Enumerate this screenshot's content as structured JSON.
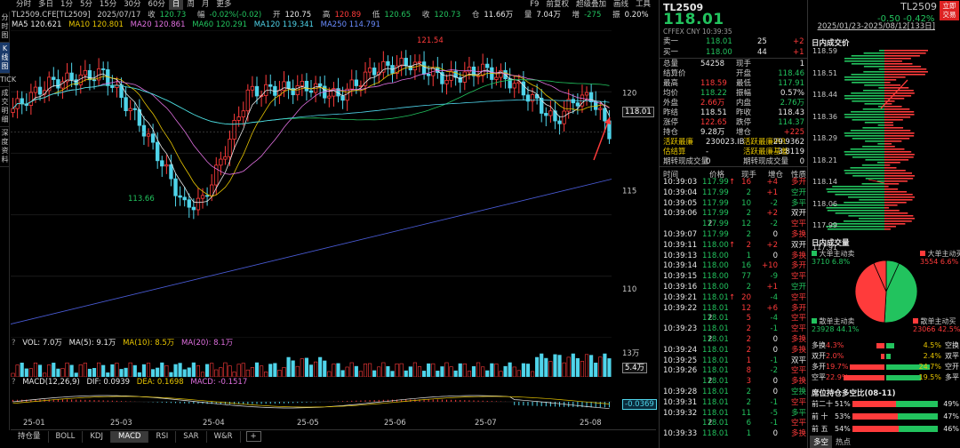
{
  "topbar": {
    "timeframes": [
      "分时",
      "多日",
      "1分",
      "5分",
      "15分",
      "30分",
      "60分",
      "日",
      "周",
      "月",
      "更多"
    ],
    "active_timeframe": "日",
    "right_items": [
      "F9",
      "前复权",
      "超级叠加",
      "画线",
      "工具"
    ]
  },
  "lefttabs": [
    "分时图",
    "K线图",
    "TICK",
    "成交明细",
    "深度资料"
  ],
  "info": {
    "symbol": "TL2509.CFE[TL2509]",
    "date": "2025/07/17",
    "close_label": "收",
    "close": "120.73",
    "amp_label": "幅",
    "amp": "-0.02%(-0.02)",
    "open_label": "开",
    "open": "120.75",
    "high_label": "高",
    "high": "120.89",
    "low_label": "低",
    "low": "120.65",
    "shou_label": "收",
    "shou": "120.73",
    "oi_label": "仓",
    "oi": "11.66万",
    "vol_label": "量",
    "vol": "7.04万",
    "inc_label": "增",
    "inc": "-275",
    "zhen_label": "振",
    "zhen": "0.20%"
  },
  "ma": {
    "ma5": "MA5 120.621",
    "ma10": "MA10 120.801",
    "ma20": "MA20 120.861",
    "ma60": "MA60 120.291",
    "ma120": "MA120 119.341",
    "ma250": "MA250 114.791"
  },
  "daterange": "2025/01/23-2025/08/12[133日]",
  "axis": {
    "price_labels": [
      "120",
      "115",
      "110"
    ],
    "high_label": "121.54",
    "low_label": "113.66",
    "last_price": "118.01",
    "vol_top": "13万",
    "vol_last": "5.4万",
    "macd_last": "-0.0369",
    "x_labels": [
      "25-01",
      "25-03",
      "25-04",
      "25-05",
      "25-06",
      "25-07",
      "25-08"
    ]
  },
  "vol_line": {
    "q": "?",
    "vol": "VOL: 7.0万",
    "ma5": "MA(5): 9.1万",
    "ma10": "MA(10): 8.5万",
    "ma20": "MA(20): 8.1万"
  },
  "macd_line": {
    "q": "?",
    "title": "MACD(12,26,9)",
    "dif": "DIF: 0.0939",
    "dea": "DEA: 0.1698",
    "macd": "MACD: -0.1517"
  },
  "bottomtabs": [
    "持仓量",
    "BOLL",
    "KDJ",
    "MACD",
    "RSI",
    "SAR",
    "W&R",
    "+"
  ],
  "bottomtabs_active": "MACD",
  "quote": {
    "symbol": "TL2509",
    "price": "118.01",
    "sub": "CFFEX  CNY    10:39:35",
    "sell1": {
      "label": "卖一",
      "price": "118.01",
      "vol": "25",
      "chg": "+2"
    },
    "buy1": {
      "label": "买一",
      "price": "118.00",
      "vol": "44",
      "chg": "+1"
    },
    "rows": [
      {
        "l1": "总量",
        "v1": "54258",
        "c1": "white",
        "l2": "现手",
        "v2": "1",
        "c2": "white"
      },
      {
        "l1": "结算价",
        "v1": "",
        "c1": "white",
        "l2": "开盘",
        "v2": "118.46",
        "c2": "green"
      },
      {
        "l1": "最高",
        "v1": "118.59",
        "c1": "red",
        "l2": "最低",
        "v2": "117.91",
        "c2": "green"
      },
      {
        "l1": "均价",
        "v1": "118.22",
        "c1": "green",
        "l2": "振幅",
        "v2": "0.57%",
        "c2": "white"
      },
      {
        "l1": "外盘",
        "v1": "2.66万",
        "c1": "red",
        "l2": "内盘",
        "v2": "2.76万",
        "c2": "green"
      },
      {
        "l1": "昨结",
        "v1": "118.51",
        "c1": "white",
        "l2": "昨收",
        "v2": "118.43",
        "c2": "white"
      },
      {
        "l1": "涨停",
        "v1": "122.65",
        "c1": "red",
        "l2": "跌停",
        "v2": "114.37",
        "c2": "green"
      },
      {
        "l1": "持仓",
        "v1": "9.28万",
        "c1": "white",
        "l2": "增仓",
        "v2": "+225",
        "c2": "red"
      },
      {
        "l1": "活跃最廉",
        "v1": "230023.IB",
        "c1": "white",
        "l2": "活跃最廉IRR",
        "v2": "29.9362",
        "c2": "white"
      },
      {
        "l1": "估结算",
        "v1": "-",
        "c1": "white",
        "l2": "活跃最廉基差",
        "v2": "3.8119",
        "c2": "white"
      },
      {
        "l1": "期转现成交量",
        "v1": "0",
        "c1": "white",
        "l2": "期转现成交量",
        "v2": "0",
        "c2": "white"
      }
    ],
    "tick_headers": [
      "时间",
      "价格",
      "现手",
      "增仓",
      "性质"
    ],
    "ticks": [
      {
        "t": "10:39:03",
        "p": "117.99",
        "pc": "green",
        "arrow": "↑",
        "v": "16",
        "vc": "red",
        "d": "+4",
        "dc": "red",
        "n": "多开",
        "nc": "red"
      },
      {
        "t": "10:39:04",
        "p": "117.99",
        "pc": "green",
        "arrow": "",
        "v": "2",
        "vc": "green",
        "d": "+1",
        "dc": "red",
        "n": "空开",
        "nc": "green"
      },
      {
        "t": "10:39:05",
        "p": "117.99",
        "pc": "green",
        "arrow": "",
        "v": "10",
        "vc": "green",
        "d": "-2",
        "dc": "green",
        "n": "多平",
        "nc": "green"
      },
      {
        "t": "10:39:06",
        "p": "117.99",
        "pc": "green",
        "arrow": "",
        "v": "2",
        "vc": "green",
        "d": "+2",
        "dc": "red",
        "n": "双开",
        "nc": "white"
      },
      {
        "t": "2",
        "p": "117.99",
        "pc": "green",
        "arrow": "",
        "v": "12",
        "vc": "green",
        "d": "-2",
        "dc": "green",
        "n": "空平",
        "nc": "red"
      },
      {
        "t": "10:39:07",
        "p": "117.99",
        "pc": "green",
        "arrow": "",
        "v": "2",
        "vc": "green",
        "d": "0",
        "dc": "white",
        "n": "多换",
        "nc": "red"
      },
      {
        "t": "10:39:11",
        "p": "118.00",
        "pc": "green",
        "arrow": "↑",
        "v": "2",
        "vc": "red",
        "d": "+2",
        "dc": "red",
        "n": "双开",
        "nc": "white"
      },
      {
        "t": "10:39:13",
        "p": "118.00",
        "pc": "green",
        "arrow": "",
        "v": "1",
        "vc": "green",
        "d": "0",
        "dc": "white",
        "n": "多换",
        "nc": "red"
      },
      {
        "t": "10:39:14",
        "p": "118.00",
        "pc": "green",
        "arrow": "",
        "v": "16",
        "vc": "green",
        "d": "+10",
        "dc": "red",
        "n": "多开",
        "nc": "red"
      },
      {
        "t": "10:39:15",
        "p": "118.00",
        "pc": "green",
        "arrow": "",
        "v": "77",
        "vc": "green",
        "d": "-9",
        "dc": "green",
        "n": "空平",
        "nc": "red"
      },
      {
        "t": "10:39:16",
        "p": "118.00",
        "pc": "green",
        "arrow": "",
        "v": "2",
        "vc": "green",
        "d": "+1",
        "dc": "red",
        "n": "空开",
        "nc": "green"
      },
      {
        "t": "10:39:21",
        "p": "118.01",
        "pc": "green",
        "arrow": "↑",
        "v": "20",
        "vc": "red",
        "d": "-4",
        "dc": "green",
        "n": "空平",
        "nc": "red"
      },
      {
        "t": "10:39:22",
        "p": "118.01",
        "pc": "green",
        "arrow": "",
        "v": "12",
        "vc": "red",
        "d": "+6",
        "dc": "red",
        "n": "多开",
        "nc": "red"
      },
      {
        "t": "2",
        "p": "118.01",
        "pc": "green",
        "arrow": "",
        "v": "5",
        "vc": "red",
        "d": "-4",
        "dc": "green",
        "n": "空平",
        "nc": "red"
      },
      {
        "t": "10:39:23",
        "p": "118.01",
        "pc": "green",
        "arrow": "",
        "v": "2",
        "vc": "red",
        "d": "-1",
        "dc": "green",
        "n": "空平",
        "nc": "red"
      },
      {
        "t": "2",
        "p": "118.01",
        "pc": "green",
        "arrow": "",
        "v": "2",
        "vc": "red",
        "d": "0",
        "dc": "white",
        "n": "多换",
        "nc": "red"
      },
      {
        "t": "10:39:24",
        "p": "118.01",
        "pc": "green",
        "arrow": "",
        "v": "2",
        "vc": "red",
        "d": "0",
        "dc": "white",
        "n": "多换",
        "nc": "red"
      },
      {
        "t": "10:39:25",
        "p": "118.01",
        "pc": "green",
        "arrow": "",
        "v": "1",
        "vc": "red",
        "d": "-1",
        "dc": "green",
        "n": "双平",
        "nc": "white"
      },
      {
        "t": "10:39:26",
        "p": "118.01",
        "pc": "green",
        "arrow": "",
        "v": "8",
        "vc": "red",
        "d": "-2",
        "dc": "green",
        "n": "空平",
        "nc": "red"
      },
      {
        "t": "2",
        "p": "118.01",
        "pc": "green",
        "arrow": "",
        "v": "3",
        "vc": "red",
        "d": "0",
        "dc": "white",
        "n": "多换",
        "nc": "red"
      },
      {
        "t": "10:39:28",
        "p": "118.01",
        "pc": "green",
        "arrow": "",
        "v": "2",
        "vc": "green",
        "d": "0",
        "dc": "white",
        "n": "空换",
        "nc": "green"
      },
      {
        "t": "10:39:31",
        "p": "118.01",
        "pc": "green",
        "arrow": "",
        "v": "2",
        "vc": "green",
        "d": "-1",
        "dc": "green",
        "n": "空平",
        "nc": "red"
      },
      {
        "t": "10:39:32",
        "p": "118.01",
        "pc": "green",
        "arrow": "",
        "v": "11",
        "vc": "green",
        "d": "-5",
        "dc": "green",
        "n": "多平",
        "nc": "green"
      },
      {
        "t": "2",
        "p": "118.01",
        "pc": "green",
        "arrow": "",
        "v": "6",
        "vc": "green",
        "d": "-1",
        "dc": "green",
        "n": "空平",
        "nc": "red"
      },
      {
        "t": "10:39:33",
        "p": "118.01",
        "pc": "green",
        "arrow": "",
        "v": "1",
        "vc": "green",
        "d": "0",
        "dc": "white",
        "n": "多换",
        "nc": "red"
      }
    ]
  },
  "right": {
    "symbol": "TL2509",
    "change": "-0.50   -0.42%",
    "trade_btn": "立即交易",
    "dist_title": "日内成交价",
    "dist_prices": [
      "118.59",
      "118.51",
      "118.44",
      "118.36",
      "118.29",
      "118.21",
      "118.14",
      "118.06",
      "117.99",
      "117.91"
    ],
    "vol_title": "日内成交量",
    "flow": {
      "big_sell_label": "大单主动卖",
      "big_sell": "3710  6.8%",
      "big_buy_label": "大单主动买",
      "big_buy": "3554  6.6%",
      "small_sell_label": "散单主动卖",
      "small_sell": "23928  44.1%",
      "small_buy_label": "散单主动买",
      "small_buy": "23066  42.5%"
    },
    "pie": [
      {
        "name": "大单主动卖",
        "value": 6.8,
        "color": "#22c35e"
      },
      {
        "name": "散单主动卖",
        "value": 44.1,
        "color": "#22c35e"
      },
      {
        "name": "散单主动买",
        "value": 42.5,
        "color": "#ff3b3b"
      },
      {
        "name": "大单主动买",
        "value": 6.6,
        "color": "#ff3b3b"
      }
    ],
    "nature": [
      {
        "l": "多换",
        "lv": "4.3%",
        "r": "4.5%",
        "rl": "空换",
        "lf": 0.043,
        "rf": 0.045
      },
      {
        "l": "双开",
        "lv": "2.0%",
        "r": "2.4%",
        "rl": "双平",
        "lf": 0.02,
        "rf": 0.024
      },
      {
        "l": "多开",
        "lv": "19.7%",
        "r": "24.7%",
        "rl": "空开",
        "lf": 0.197,
        "rf": 0.247
      },
      {
        "l": "空平",
        "lv": "22.9%",
        "r": "19.5%",
        "rl": "多平",
        "lf": 0.229,
        "rf": 0.195
      }
    ],
    "pos_title": "席位持仓多空比(08-11)",
    "positions": [
      {
        "l": "前二十",
        "lv": "51%",
        "rv": "49%",
        "f": 0.51
      },
      {
        "l": "前 十",
        "lv": "53%",
        "rv": "47%",
        "f": 0.53
      },
      {
        "l": "前 五",
        "lv": "54%",
        "rv": "46%",
        "f": 0.54
      }
    ],
    "tabs": [
      "多空",
      "热点"
    ]
  },
  "chart_data": {
    "type": "candlestick",
    "x_labels": [
      "25-01",
      "25-03",
      "25-04",
      "25-05",
      "25-06",
      "25-07",
      "25-08"
    ],
    "y_ticks": [
      120,
      115,
      110
    ],
    "high": 121.54,
    "low": 113.66,
    "last": 118.01
  }
}
